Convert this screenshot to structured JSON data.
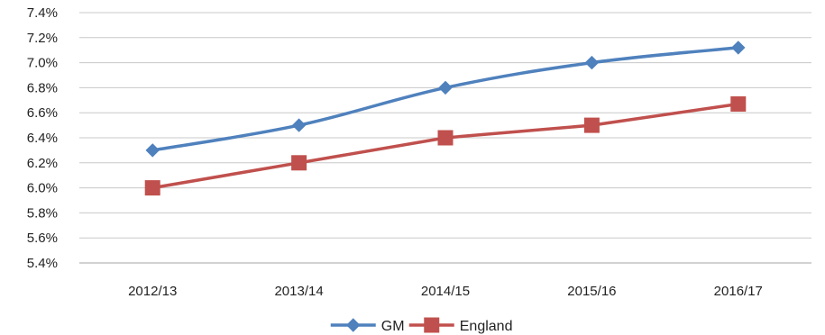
{
  "chart_data": {
    "type": "line",
    "title": "",
    "xlabel": "",
    "ylabel": "",
    "categories": [
      "2012/13",
      "2013/14",
      "2014/15",
      "2015/16",
      "2016/17"
    ],
    "ylim": [
      5.4,
      7.4
    ],
    "ytick_step": 0.2,
    "y_unit": "%",
    "grid": true,
    "legend": "bottom",
    "series": [
      {
        "name": "GM",
        "values": [
          6.3,
          6.5,
          6.8,
          7.0,
          7.12
        ],
        "color": "#4f81bd",
        "marker": "diamond",
        "smooth": true
      },
      {
        "name": "England",
        "values": [
          6.0,
          6.2,
          6.4,
          6.5,
          6.67
        ],
        "color": "#c0504d",
        "marker": "square",
        "smooth": false
      }
    ]
  }
}
